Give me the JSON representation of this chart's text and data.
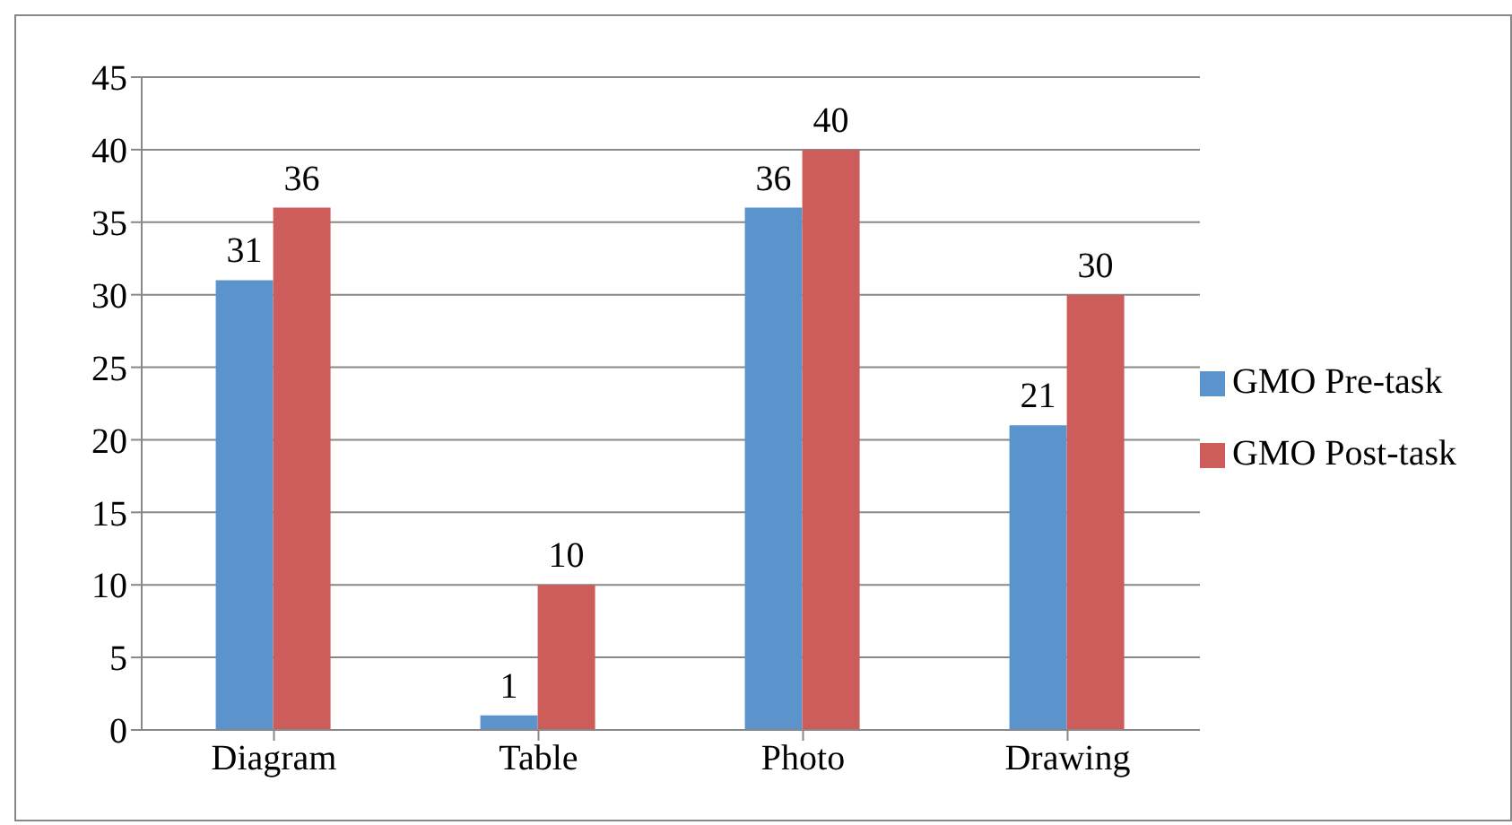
{
  "chart_data": {
    "type": "bar",
    "categories": [
      "Diagram",
      "Table",
      "Photo",
      "Drawing"
    ],
    "series": [
      {
        "name": "GMO Pre-task",
        "color": "#5b93cd",
        "values": [
          31,
          1,
          36,
          21
        ]
      },
      {
        "name": "GMO Post-task",
        "color": "#cd5d5a",
        "values": [
          36,
          10,
          40,
          30
        ]
      }
    ],
    "ylim": [
      0,
      45
    ],
    "yticks": [
      0,
      5,
      10,
      15,
      20,
      25,
      30,
      35,
      40,
      45
    ],
    "grid": "y",
    "legend": "right",
    "data_labels": true
  }
}
